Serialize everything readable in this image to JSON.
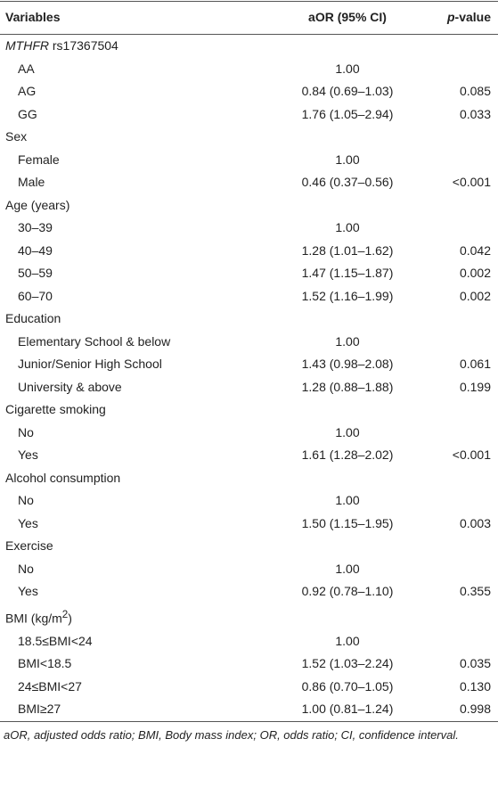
{
  "header": {
    "variables": "Variables",
    "aor": "aOR (95% CI)",
    "p_italic": "p",
    "p_rest": "-value"
  },
  "rows": [
    {
      "group_italic": "MTHFR",
      "group": "rs17367504"
    },
    {
      "label": "AA",
      "aor": "1.00"
    },
    {
      "label": "AG",
      "aor": "0.84 (0.69–1.03)",
      "p": "0.085"
    },
    {
      "label": "GG",
      "aor": "1.76 (1.05–2.94)",
      "p": "0.033"
    },
    {
      "group": "Sex"
    },
    {
      "label": "Female",
      "aor": "1.00"
    },
    {
      "label": "Male",
      "aor": "0.46 (0.37–0.56)",
      "p": "<0.001"
    },
    {
      "group": "Age (years)"
    },
    {
      "label": "30–39",
      "aor": "1.00"
    },
    {
      "label": "40–49",
      "aor": "1.28 (1.01–1.62)",
      "p": "0.042"
    },
    {
      "label": "50–59",
      "aor": "1.47 (1.15–1.87)",
      "p": "0.002"
    },
    {
      "label": "60–70",
      "aor": "1.52 (1.16–1.99)",
      "p": "0.002"
    },
    {
      "group": "Education"
    },
    {
      "label": "Elementary School & below",
      "aor": "1.00"
    },
    {
      "label": "Junior/Senior High School",
      "aor": "1.43 (0.98–2.08)",
      "p": "0.061"
    },
    {
      "label": "University & above",
      "aor": "1.28 (0.88–1.88)",
      "p": "0.199"
    },
    {
      "group": "Cigarette smoking"
    },
    {
      "label": "No",
      "aor": "1.00"
    },
    {
      "label": "Yes",
      "aor": "1.61 (1.28–2.02)",
      "p": "<0.001"
    },
    {
      "group": "Alcohol consumption"
    },
    {
      "label": "No",
      "aor": "1.00"
    },
    {
      "label": "Yes",
      "aor": "1.50 (1.15–1.95)",
      "p": "0.003"
    },
    {
      "group": "Exercise"
    },
    {
      "label": "No",
      "aor": "1.00"
    },
    {
      "label": "Yes",
      "aor": "0.92 (0.78–1.10)",
      "p": "0.355"
    },
    {
      "group_parts": [
        "BMI (kg/m",
        "2",
        ")"
      ]
    },
    {
      "label": "18.5≤BMI<24",
      "aor": "1.00"
    },
    {
      "label": "BMI<18.5",
      "aor": "1.52 (1.03–2.24)",
      "p": "0.035"
    },
    {
      "label": "24≤BMI<27",
      "aor": "0.86 (0.70–1.05)",
      "p": "0.130"
    },
    {
      "label": "BMI≥27",
      "aor": "1.00 (0.81–1.24)",
      "p": "0.998"
    }
  ],
  "footnote": "aOR, adjusted odds ratio; BMI, Body mass index; OR, odds ratio; CI, confidence interval."
}
